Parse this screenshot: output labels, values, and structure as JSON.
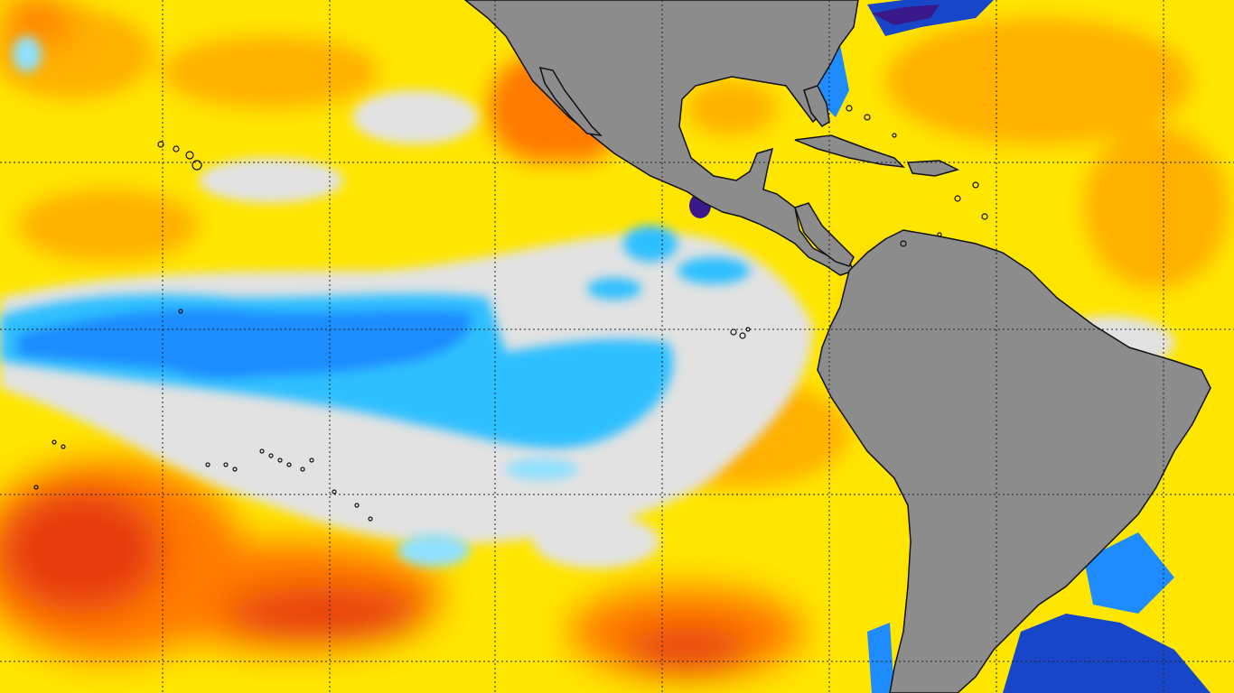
{
  "map": {
    "colors": {
      "land": "#8c8c8c",
      "coast": "#111111",
      "gridline": "#222222",
      "warm_bright": "#ffe600",
      "warm": "#ffd400",
      "warm_orange": "#ffb000",
      "hot": "#ff7a00",
      "very_hot": "#e63b10",
      "neutral": "#e2e2e2",
      "cool_light": "#8fe0ff",
      "cool": "#2fbfff",
      "cold": "#1e8cff",
      "very_cold": "#1846c8",
      "extreme_cold": "#3a1a8a"
    }
  }
}
